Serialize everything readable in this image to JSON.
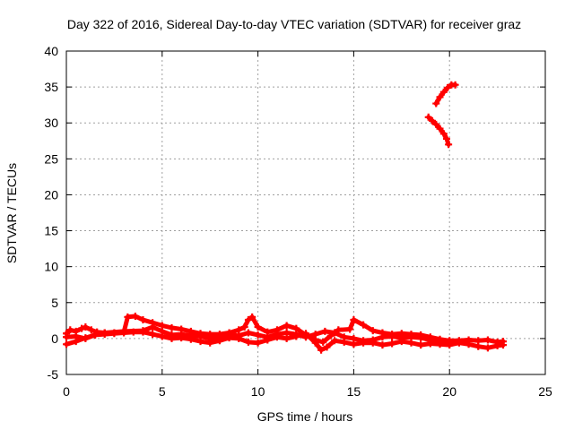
{
  "chart_data": {
    "type": "scatter",
    "title": "Day 322 of 2016, Sidereal Day-to-day VTEC variation (SDTVAR) for receiver graz",
    "xlabel": "GPS time / hours",
    "ylabel": "SDTVAR / TECUs",
    "xlim": [
      0,
      25
    ],
    "ylim": [
      -5,
      40
    ],
    "x_ticks": [
      0,
      5,
      10,
      15,
      20,
      25
    ],
    "y_ticks": [
      -5,
      0,
      5,
      10,
      15,
      20,
      25,
      30,
      35,
      40
    ],
    "grid": true,
    "marker_color": "#ff0000",
    "series": [
      {
        "values_xy": [
          [
            0.0,
            0.7
          ],
          [
            0.2,
            1.2
          ],
          [
            0.5,
            1.0
          ],
          [
            0.8,
            1.4
          ],
          [
            1.0,
            1.6
          ],
          [
            1.3,
            1.2
          ],
          [
            1.6,
            0.9
          ],
          [
            2.0,
            0.8
          ],
          [
            2.5,
            0.8
          ],
          [
            3.0,
            0.9
          ],
          [
            3.2,
            3.0
          ],
          [
            3.6,
            3.1
          ],
          [
            4.0,
            2.6
          ],
          [
            4.5,
            2.2
          ],
          [
            5.0,
            1.8
          ],
          [
            5.5,
            1.5
          ],
          [
            6.0,
            1.3
          ],
          [
            6.5,
            1.0
          ],
          [
            7.0,
            0.7
          ],
          [
            7.5,
            0.6
          ],
          [
            8.0,
            0.6
          ],
          [
            8.5,
            0.8
          ],
          [
            9.0,
            1.2
          ],
          [
            9.3,
            1.6
          ],
          [
            9.5,
            2.6
          ],
          [
            9.7,
            3.0
          ],
          [
            10.0,
            1.6
          ],
          [
            10.5,
            0.9
          ],
          [
            11.0,
            1.2
          ],
          [
            11.5,
            1.8
          ],
          [
            12.0,
            1.4
          ],
          [
            12.5,
            0.5
          ],
          [
            13.0,
            -0.2
          ],
          [
            13.4,
            -0.5
          ],
          [
            13.8,
            0.4
          ],
          [
            14.2,
            1.2
          ],
          [
            14.8,
            1.3
          ],
          [
            15.0,
            2.6
          ],
          [
            15.5,
            1.9
          ],
          [
            16.0,
            1.1
          ],
          [
            16.5,
            0.8
          ],
          [
            17.0,
            0.6
          ],
          [
            17.5,
            0.7
          ],
          [
            18.0,
            0.6
          ],
          [
            18.5,
            0.5
          ],
          [
            19.0,
            0.2
          ],
          [
            19.5,
            -0.1
          ],
          [
            20.0,
            -0.3
          ],
          [
            20.5,
            -0.3
          ],
          [
            21.0,
            -0.2
          ],
          [
            21.5,
            -0.3
          ],
          [
            22.0,
            -0.2
          ],
          [
            22.5,
            -0.5
          ],
          [
            22.8,
            -0.4
          ]
        ]
      },
      {
        "values_xy": [
          [
            0.0,
            -0.8
          ],
          [
            0.5,
            -0.4
          ],
          [
            1.0,
            0.1
          ],
          [
            1.5,
            0.5
          ],
          [
            2.0,
            0.6
          ],
          [
            2.5,
            0.7
          ],
          [
            3.0,
            0.8
          ],
          [
            3.5,
            0.9
          ],
          [
            4.0,
            0.9
          ],
          [
            4.5,
            0.6
          ],
          [
            5.0,
            0.3
          ],
          [
            5.5,
            0.0
          ],
          [
            6.0,
            0.1
          ],
          [
            6.5,
            -0.1
          ],
          [
            7.0,
            -0.4
          ],
          [
            7.5,
            -0.6
          ],
          [
            8.0,
            -0.3
          ],
          [
            8.5,
            0.1
          ],
          [
            9.0,
            0.0
          ],
          [
            9.5,
            -0.5
          ],
          [
            10.0,
            -0.6
          ],
          [
            10.5,
            -0.2
          ],
          [
            11.0,
            0.2
          ],
          [
            11.5,
            0.0
          ],
          [
            12.0,
            0.3
          ],
          [
            12.5,
            0.7
          ],
          [
            13.0,
            -0.6
          ],
          [
            13.3,
            -1.6
          ],
          [
            13.6,
            -1.2
          ],
          [
            14.0,
            -0.3
          ],
          [
            14.5,
            -0.5
          ],
          [
            15.0,
            -0.8
          ],
          [
            15.5,
            -0.6
          ],
          [
            16.0,
            -0.6
          ],
          [
            16.5,
            -0.9
          ],
          [
            17.0,
            -0.7
          ],
          [
            17.5,
            -0.4
          ],
          [
            18.0,
            -0.6
          ],
          [
            18.5,
            -0.9
          ],
          [
            19.0,
            -0.7
          ],
          [
            19.5,
            -0.8
          ],
          [
            20.0,
            -0.9
          ],
          [
            20.5,
            -0.6
          ],
          [
            21.0,
            -0.8
          ],
          [
            21.5,
            -1.1
          ],
          [
            22.0,
            -1.3
          ],
          [
            22.5,
            -1.0
          ],
          [
            22.8,
            -0.9
          ]
        ]
      },
      {
        "values_xy": [
          [
            0.0,
            0.2
          ],
          [
            0.5,
            0.3
          ],
          [
            1.0,
            0.0
          ],
          [
            1.5,
            0.5
          ],
          [
            2.0,
            0.8
          ],
          [
            3.0,
            1.0
          ],
          [
            4.0,
            1.1
          ],
          [
            4.5,
            1.6
          ],
          [
            5.0,
            1.0
          ],
          [
            5.5,
            0.5
          ],
          [
            6.0,
            0.6
          ],
          [
            6.5,
            0.4
          ],
          [
            7.0,
            0.3
          ],
          [
            7.5,
            0.0
          ],
          [
            8.0,
            0.2
          ],
          [
            8.5,
            0.5
          ],
          [
            9.0,
            0.4
          ],
          [
            9.5,
            0.8
          ],
          [
            10.0,
            0.5
          ],
          [
            10.5,
            0.2
          ],
          [
            11.0,
            0.6
          ],
          [
            11.5,
            0.8
          ],
          [
            12.0,
            0.6
          ],
          [
            12.5,
            0.2
          ],
          [
            13.0,
            0.6
          ],
          [
            13.5,
            1.0
          ],
          [
            14.0,
            0.8
          ],
          [
            14.5,
            0.2
          ],
          [
            15.0,
            0.0
          ],
          [
            15.5,
            -0.3
          ],
          [
            16.0,
            -0.2
          ],
          [
            16.5,
            0.2
          ],
          [
            17.0,
            0.3
          ],
          [
            17.5,
            0.1
          ],
          [
            18.0,
            0.2
          ],
          [
            18.5,
            0.1
          ],
          [
            19.0,
            -0.2
          ],
          [
            19.5,
            -0.4
          ],
          [
            20.0,
            -0.5
          ]
        ]
      },
      {
        "values_xy": [
          [
            18.9,
            30.8
          ],
          [
            19.1,
            30.3
          ],
          [
            19.3,
            29.8
          ],
          [
            19.5,
            29.2
          ],
          [
            19.7,
            28.5
          ],
          [
            19.85,
            27.8
          ],
          [
            19.95,
            27.0
          ]
        ]
      },
      {
        "values_xy": [
          [
            19.3,
            32.7
          ],
          [
            19.5,
            33.6
          ],
          [
            19.7,
            34.3
          ],
          [
            19.9,
            34.9
          ],
          [
            20.1,
            35.3
          ],
          [
            20.3,
            35.3
          ]
        ]
      }
    ]
  }
}
